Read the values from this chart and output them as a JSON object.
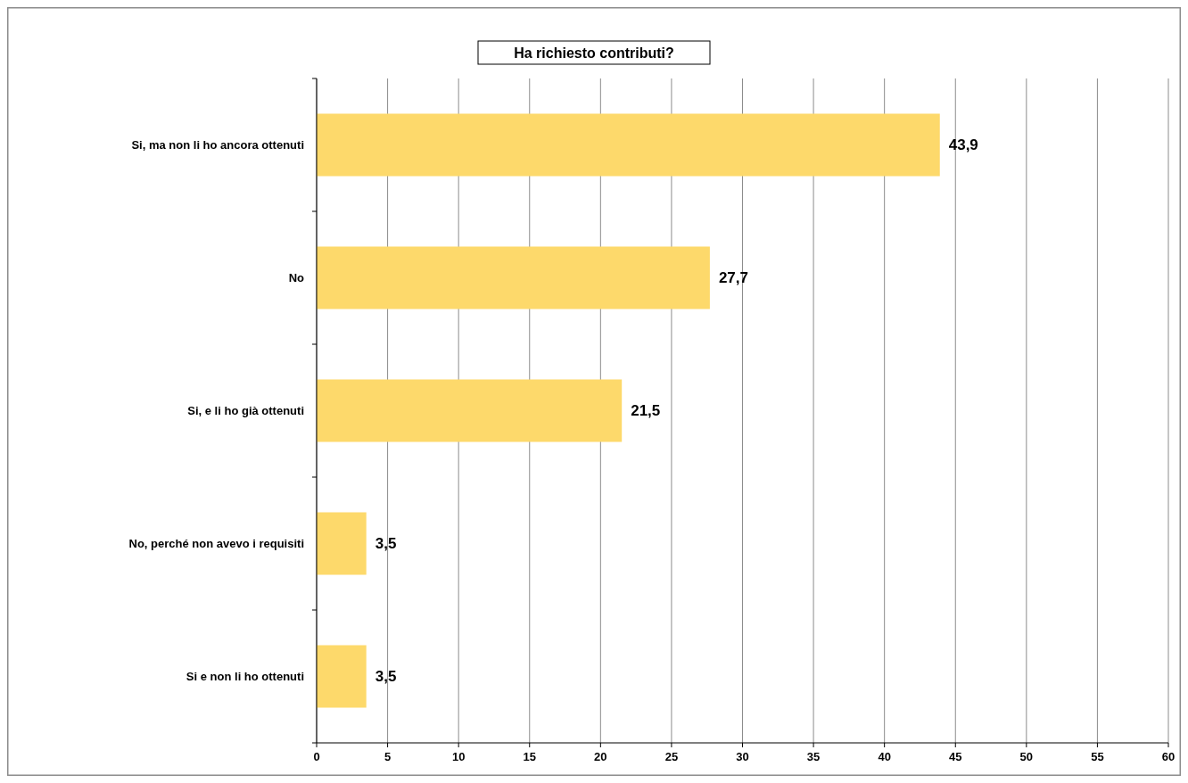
{
  "chart_data": {
    "type": "bar",
    "orientation": "horizontal",
    "title": "Ha richiesto contributi?",
    "categories": [
      "Si, ma non li ho ancora ottenuti",
      "No",
      "Si, e li ho già ottenuti",
      "No, perché non avevo i requisiti",
      "Si e non li ho ottenuti"
    ],
    "values": [
      43.9,
      27.7,
      21.5,
      3.5,
      3.5
    ],
    "value_labels": [
      "43,9",
      "27,7",
      "21,5",
      "3,5",
      "3,5"
    ],
    "color": "#fdd96b",
    "xlim": [
      0,
      60
    ],
    "xticks": [
      0,
      5,
      10,
      15,
      20,
      25,
      30,
      35,
      40,
      45,
      50,
      55,
      60
    ],
    "grid": "x"
  }
}
